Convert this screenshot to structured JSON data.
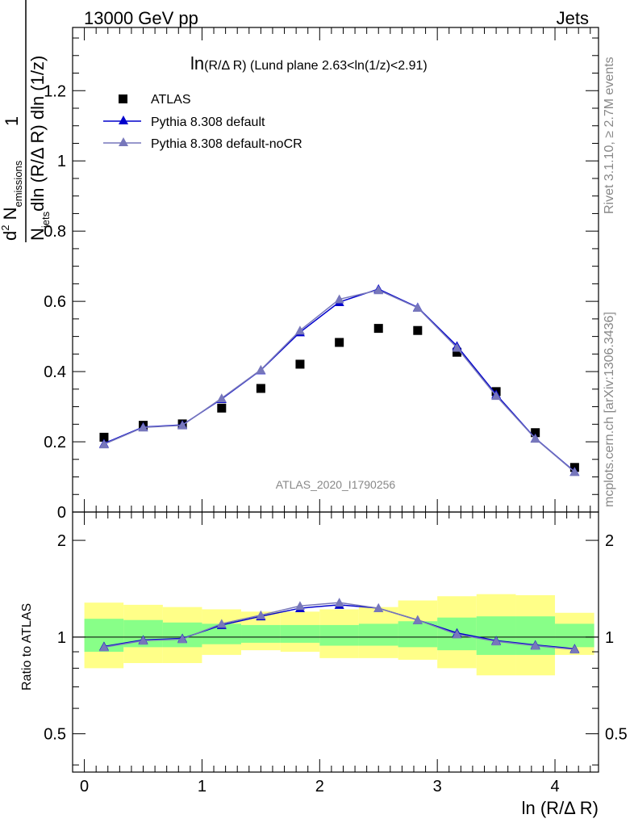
{
  "header": {
    "left": "13000 GeV pp",
    "right": "Jets"
  },
  "side_labels": {
    "top": "Rivet 3.1.10, ≥ 2.7M events",
    "bottom": "mcplots.cern.ch [arXiv:1306.3436]"
  },
  "plot_title": {
    "prefix": "ln",
    "var": "(R/Δ R)",
    "rest": " (Lund plane 2.63<ln(1/z)<2.91)"
  },
  "watermark": "ATLAS_2020_I1790256",
  "ylabel": {
    "num_pre": "d",
    "num_sup": "2",
    "num_main": " N",
    "num_sub": "emissions",
    "den_pre": "N",
    "den_sub": "jets",
    "den_main": "dln (R/Δ R) dln (1/z)",
    "one": "1"
  },
  "ratio_ylabel": "Ratio to ATLAS",
  "xlabel": "ln (R/Δ R)",
  "legend": [
    {
      "label": "ATLAS",
      "color": "#000000",
      "marker": "square"
    },
    {
      "label": "Pythia 8.308 default",
      "color": "#0000cc",
      "marker": "triangle"
    },
    {
      "label": "Pythia 8.308 default-noCR",
      "color": "#7777bb",
      "marker": "triangle"
    }
  ],
  "chart_data": {
    "type": "scatter",
    "x_ticks": [
      "0",
      "1",
      "2",
      "3",
      "4"
    ],
    "main_y_ticks": [
      "0",
      "0.2",
      "0.4",
      "0.6",
      "0.8",
      "1",
      "1.2"
    ],
    "ratio_y_ticks": [
      "0.5",
      "1",
      "2"
    ],
    "xlim": [
      -0.1,
      4.37
    ],
    "main_ylim": [
      0,
      1.38
    ],
    "ratio_ylim": [
      0.38,
      2.45
    ],
    "ratio_scale": "log",
    "x": [
      0.167,
      0.5,
      0.833,
      1.167,
      1.5,
      1.833,
      2.167,
      2.5,
      2.833,
      3.167,
      3.5,
      3.833,
      4.167
    ],
    "bin_edges": [
      0,
      0.333,
      0.667,
      1.0,
      1.333,
      1.667,
      2.0,
      2.333,
      2.667,
      3.0,
      3.333,
      3.667,
      4.0,
      4.333
    ],
    "series": [
      {
        "name": "ATLAS",
        "color": "#000000",
        "values": [
          0.213,
          0.247,
          0.251,
          0.296,
          0.352,
          0.421,
          0.483,
          0.523,
          0.517,
          0.455,
          0.343,
          0.226,
          0.127
        ]
      },
      {
        "name": "Pythia 8.308 default",
        "color": "#0000cc",
        "values": [
          0.195,
          0.242,
          0.248,
          0.322,
          0.404,
          0.512,
          0.598,
          0.635,
          0.583,
          0.473,
          0.335,
          0.21,
          0.115
        ]
      },
      {
        "name": "Pythia 8.308 default-noCR",
        "color": "#7777bb",
        "values": [
          0.193,
          0.241,
          0.247,
          0.324,
          0.405,
          0.517,
          0.606,
          0.632,
          0.582,
          0.468,
          0.331,
          0.209,
          0.114
        ]
      }
    ],
    "ratio_series": [
      {
        "name": "Pythia 8.308 default",
        "color": "#0000cc",
        "values": [
          0.935,
          0.98,
          0.99,
          1.09,
          1.16,
          1.23,
          1.26,
          1.23,
          1.13,
          1.03,
          0.975,
          0.945,
          0.92
        ]
      },
      {
        "name": "Pythia 8.308 default-noCR",
        "color": "#7777bb",
        "values": [
          0.93,
          0.975,
          0.985,
          1.1,
          1.17,
          1.25,
          1.28,
          1.23,
          1.13,
          1.02,
          0.97,
          0.94,
          0.915
        ]
      }
    ],
    "ratio_bands": {
      "outer_color": "#ffff88",
      "inner_color": "#88ff88",
      "yellow_low": [
        0.8,
        0.83,
        0.83,
        0.88,
        0.91,
        0.9,
        0.86,
        0.86,
        0.85,
        0.8,
        0.76,
        0.76,
        0.88
      ],
      "yellow_high": [
        1.28,
        1.26,
        1.24,
        1.22,
        1.2,
        1.2,
        1.22,
        1.24,
        1.3,
        1.34,
        1.36,
        1.35,
        1.19
      ],
      "green_low": [
        0.9,
        0.93,
        0.93,
        0.95,
        0.96,
        0.96,
        0.94,
        0.94,
        0.93,
        0.91,
        0.88,
        0.88,
        0.93
      ],
      "green_high": [
        1.14,
        1.13,
        1.11,
        1.1,
        1.09,
        1.09,
        1.09,
        1.1,
        1.12,
        1.15,
        1.16,
        1.16,
        1.1
      ]
    },
    "grid": false,
    "legend_position": "top-left"
  }
}
